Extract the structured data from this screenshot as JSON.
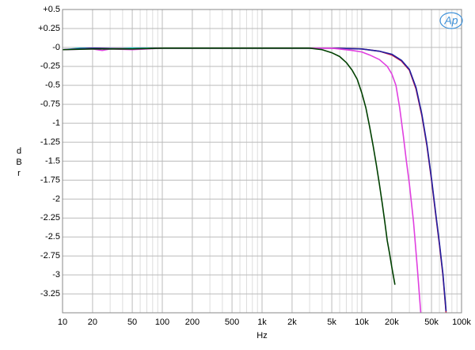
{
  "chart_data": {
    "type": "line",
    "xlabel": "Hz",
    "ylabel": "dBr",
    "logo": "Ap",
    "xlog": true,
    "grid": true,
    "xlim": [
      10,
      100000
    ],
    "ylim": [
      -3.5,
      0.5
    ],
    "xticks": [
      {
        "value": 10,
        "label": "10"
      },
      {
        "value": 20,
        "label": "20"
      },
      {
        "value": 50,
        "label": "50"
      },
      {
        "value": 100,
        "label": "100"
      },
      {
        "value": 200,
        "label": "200"
      },
      {
        "value": 500,
        "label": "500"
      },
      {
        "value": 1000,
        "label": "1k"
      },
      {
        "value": 2000,
        "label": "2k"
      },
      {
        "value": 5000,
        "label": "5k"
      },
      {
        "value": 10000,
        "label": "10k"
      },
      {
        "value": 20000,
        "label": "20k"
      },
      {
        "value": 50000,
        "label": "50k"
      },
      {
        "value": 100000,
        "label": "100k"
      }
    ],
    "xminorticks": [
      30,
      40,
      60,
      70,
      80,
      90,
      300,
      400,
      600,
      700,
      800,
      900,
      3000,
      4000,
      6000,
      7000,
      8000,
      9000,
      30000,
      40000,
      60000,
      70000,
      80000,
      90000
    ],
    "yticks": [
      {
        "value": 0.5,
        "label": "+0.5"
      },
      {
        "value": 0.25,
        "label": "+0.25"
      },
      {
        "value": 0,
        "label": "-0"
      },
      -0.25,
      -0.5,
      -0.75,
      -1,
      -1.25,
      -1.5,
      -1.75,
      -2,
      -2.25,
      -2.5,
      -2.75,
      -3,
      -3.25
    ],
    "series": [
      {
        "color": "#00c8d0",
        "x": [
          10,
          15,
          20,
          30,
          50,
          100,
          1000,
          3000,
          4000
        ],
        "values": [
          -0.03,
          -0.01,
          -0.01,
          -0.02,
          -0.01,
          -0.01,
          -0.01,
          -0.01,
          -0.02
        ]
      },
      {
        "color": "#d01040",
        "x": [
          10,
          20,
          50,
          100,
          1000,
          5000,
          10000,
          15000,
          20000,
          25000,
          30000,
          35000,
          40000,
          45000,
          50000,
          55000,
          60000,
          65000,
          70000
        ],
        "values": [
          -0.03,
          -0.01,
          -0.02,
          -0.01,
          -0.01,
          -0.01,
          -0.02,
          -0.05,
          -0.1,
          -0.18,
          -0.3,
          -0.55,
          -0.9,
          -1.3,
          -1.75,
          -2.2,
          -2.6,
          -3.0,
          -3.5
        ]
      },
      {
        "color": "#2020a0",
        "x": [
          10,
          20,
          50,
          100,
          1000,
          5000,
          10000,
          15000,
          20000,
          25000,
          30000,
          35000,
          40000,
          45000,
          50000,
          55000,
          60000,
          65000,
          70000
        ],
        "values": [
          -0.03,
          -0.01,
          -0.02,
          -0.01,
          -0.01,
          -0.01,
          -0.02,
          -0.05,
          -0.09,
          -0.17,
          -0.29,
          -0.53,
          -0.88,
          -1.28,
          -1.73,
          -2.18,
          -2.58,
          -2.98,
          -3.48
        ]
      },
      {
        "color": "#e040e0",
        "x": [
          10,
          20,
          25,
          30,
          50,
          100,
          1000,
          5000,
          8000,
          10000,
          12000,
          15000,
          18000,
          20000,
          22000,
          24000,
          26000,
          28000,
          30000,
          33000,
          36000,
          39000
        ],
        "values": [
          -0.03,
          -0.02,
          -0.04,
          -0.02,
          -0.03,
          -0.01,
          -0.01,
          -0.01,
          -0.04,
          -0.06,
          -0.1,
          -0.16,
          -0.25,
          -0.35,
          -0.5,
          -0.8,
          -1.15,
          -1.5,
          -1.8,
          -2.3,
          -2.9,
          -3.5
        ]
      },
      {
        "color": "#004000",
        "x": [
          10,
          20,
          50,
          100,
          1000,
          3000,
          4000,
          5000,
          6000,
          7000,
          8000,
          9000,
          10000,
          11000,
          12000,
          13000,
          14000,
          15000,
          16000,
          17000,
          18000,
          19000,
          20000,
          21500
        ],
        "values": [
          -0.03,
          -0.02,
          -0.02,
          -0.01,
          -0.01,
          -0.01,
          -0.03,
          -0.07,
          -0.12,
          -0.2,
          -0.3,
          -0.42,
          -0.6,
          -0.8,
          -1.05,
          -1.3,
          -1.55,
          -1.8,
          -2.05,
          -2.3,
          -2.55,
          -2.72,
          -2.9,
          -3.13
        ]
      }
    ]
  }
}
